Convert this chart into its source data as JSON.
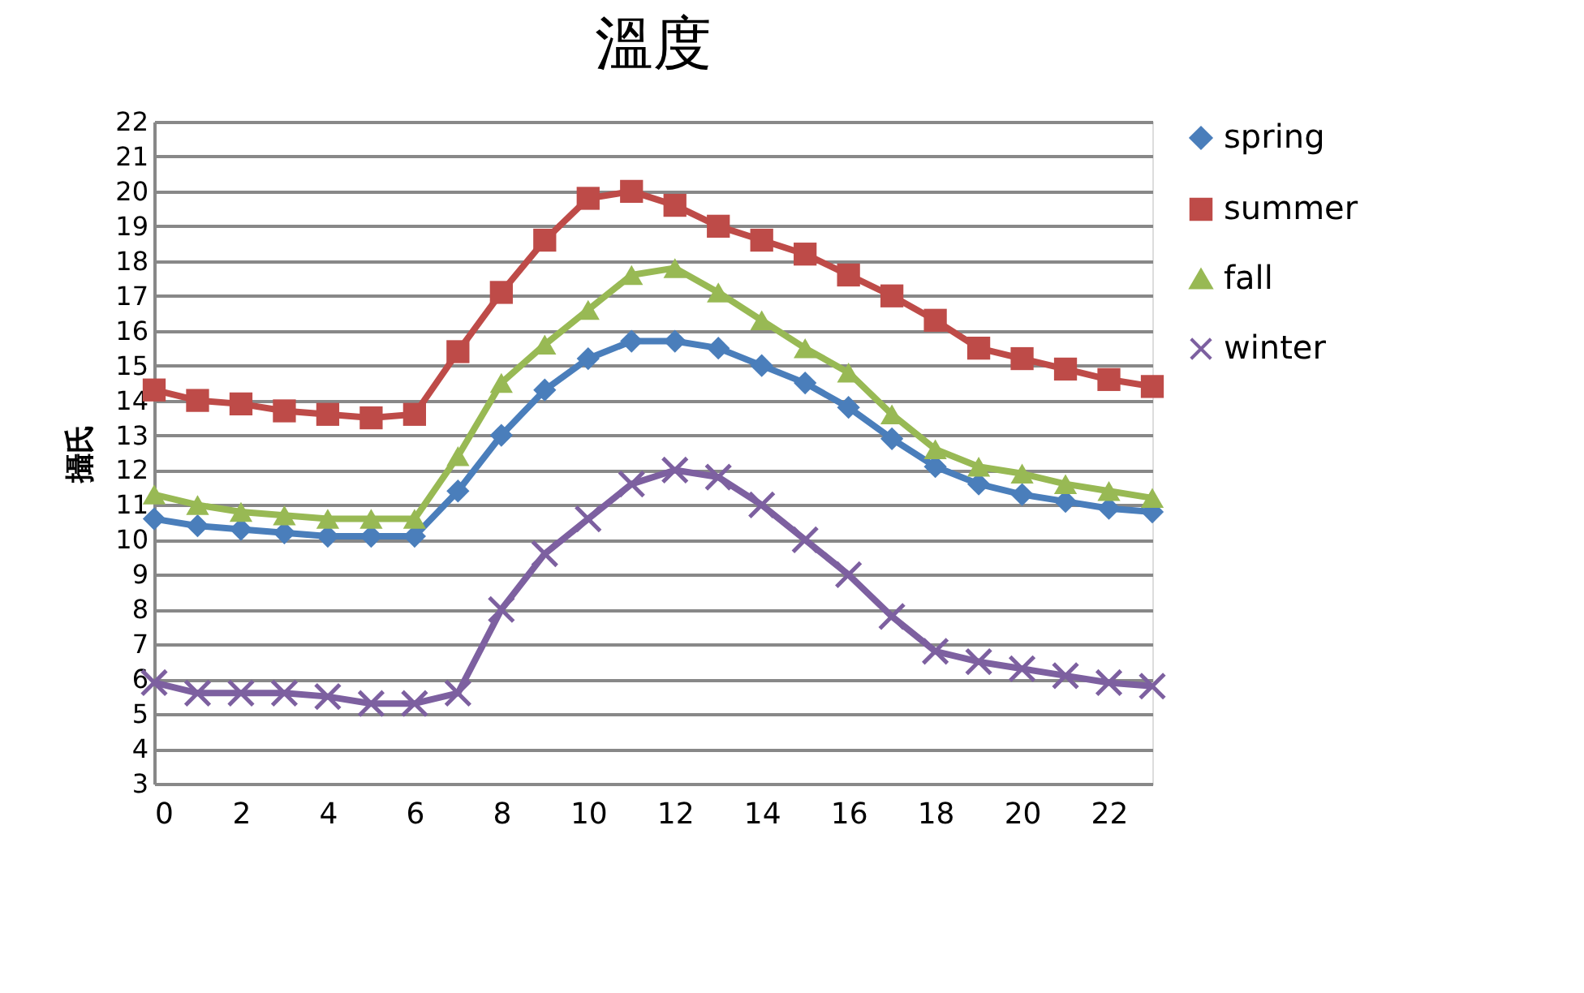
{
  "chart_data": {
    "type": "line",
    "title": "溫度",
    "ylabel": "攝氏",
    "x": [
      0,
      1,
      2,
      3,
      4,
      5,
      6,
      7,
      8,
      9,
      10,
      11,
      12,
      13,
      14,
      15,
      16,
      17,
      18,
      19,
      20,
      21,
      22,
      23
    ],
    "series": [
      {
        "name": "spring",
        "color": "#4a7ebb",
        "marker": "diamond",
        "values": [
          10.6,
          10.4,
          10.3,
          10.2,
          10.1,
          10.1,
          10.1,
          11.4,
          13.0,
          14.3,
          15.2,
          15.7,
          15.7,
          15.5,
          15.0,
          14.5,
          13.8,
          12.9,
          12.1,
          11.6,
          11.3,
          11.1,
          10.9,
          10.8
        ]
      },
      {
        "name": "summer",
        "color": "#be4b48",
        "marker": "square",
        "values": [
          14.3,
          14.0,
          13.9,
          13.7,
          13.6,
          13.5,
          13.6,
          15.4,
          17.1,
          18.6,
          19.8,
          20.0,
          19.6,
          19.0,
          18.6,
          18.2,
          17.6,
          17.0,
          16.3,
          15.5,
          15.2,
          14.9,
          14.6,
          14.4
        ]
      },
      {
        "name": "fall",
        "color": "#98b954",
        "marker": "triangle",
        "values": [
          11.3,
          11.0,
          10.8,
          10.7,
          10.6,
          10.6,
          10.6,
          12.4,
          14.5,
          15.6,
          16.6,
          17.6,
          17.8,
          17.1,
          16.3,
          15.5,
          14.8,
          13.6,
          12.6,
          12.1,
          11.9,
          11.6,
          11.4,
          11.2
        ]
      },
      {
        "name": "winter",
        "color": "#7d60a0",
        "marker": "cross",
        "values": [
          5.9,
          5.6,
          5.6,
          5.6,
          5.5,
          5.3,
          5.3,
          5.6,
          8.0,
          9.6,
          10.6,
          11.6,
          12.0,
          11.8,
          11.0,
          10.0,
          9.0,
          7.8,
          6.8,
          6.5,
          6.3,
          6.1,
          5.9,
          5.8
        ]
      }
    ],
    "xlim": [
      0,
      23
    ],
    "xticks": [
      0,
      2,
      4,
      6,
      8,
      10,
      12,
      14,
      16,
      18,
      20,
      22
    ],
    "ylim": [
      3,
      22
    ],
    "yticks": [
      3,
      4,
      5,
      6,
      7,
      8,
      9,
      10,
      11,
      12,
      13,
      14,
      15,
      16,
      17,
      18,
      19,
      20,
      21,
      22
    ],
    "grid": "y",
    "legend": "right",
    "line_style": "solid"
  }
}
